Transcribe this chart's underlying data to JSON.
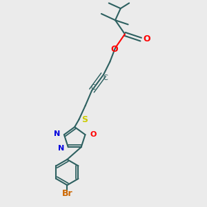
{
  "bg": "#ebebeb",
  "bond_color": "#2d6060",
  "o_color": "#ff0000",
  "n_color": "#0000dd",
  "s_color": "#cccc00",
  "br_color": "#cc6600",
  "lw": 1.5,
  "figsize": [
    3.0,
    3.0
  ],
  "dpi": 100,
  "xlim": [
    0.1,
    0.9
  ],
  "ylim": [
    0.02,
    0.98
  ]
}
